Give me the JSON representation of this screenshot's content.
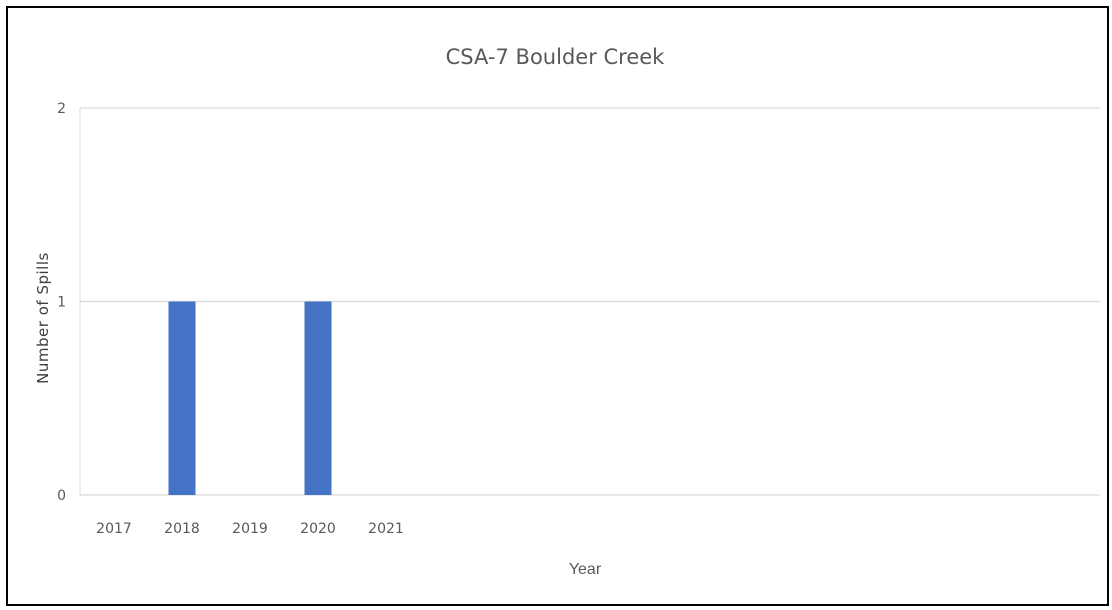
{
  "chart_data": {
    "type": "bar",
    "title": "CSA-7 Boulder Creek",
    "xlabel": "Year",
    "ylabel": "Number of Spills",
    "categories": [
      "2017",
      "2018",
      "2019",
      "2020",
      "2021"
    ],
    "values": [
      0,
      1,
      0,
      1,
      0
    ],
    "ylim": [
      0,
      2
    ],
    "yticks": [
      "0",
      "1",
      "2"
    ],
    "grid": true,
    "legend": "none",
    "colors": {
      "bar": "#4472C4",
      "grid": "#D9D9D9",
      "text": "#595959"
    }
  }
}
